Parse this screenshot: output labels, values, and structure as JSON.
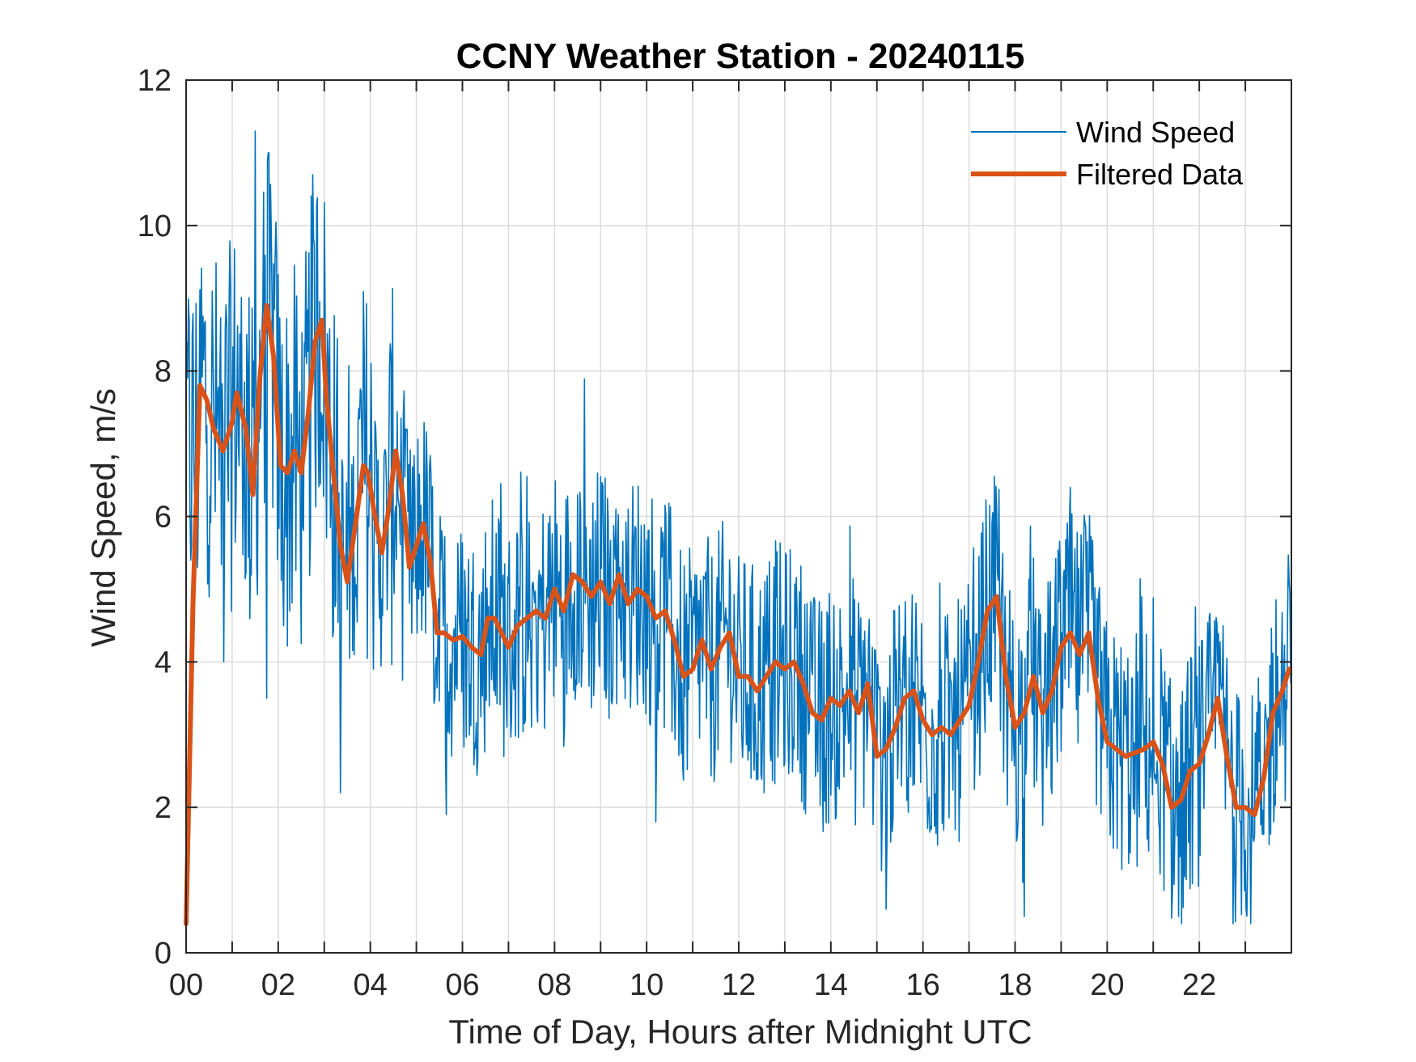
{
  "chart_data": {
    "type": "line",
    "title": "CCNY Weather Station - 20240115",
    "xlabel": "Time of Day, Hours after Midnight UTC",
    "ylabel": "Wind Speed, m/s",
    "xlim": [
      0,
      24
    ],
    "ylim": [
      0,
      12
    ],
    "grid": true,
    "x_ticks": [
      0,
      2,
      4,
      6,
      8,
      10,
      12,
      14,
      16,
      18,
      20,
      22
    ],
    "x_tick_labels": [
      "00",
      "02",
      "04",
      "06",
      "08",
      "10",
      "12",
      "14",
      "16",
      "18",
      "20",
      "22"
    ],
    "x_minor_grid_step": 1,
    "y_ticks": [
      0,
      2,
      4,
      6,
      8,
      10,
      12
    ],
    "y_tick_labels": [
      "0",
      "2",
      "4",
      "6",
      "8",
      "10",
      "12"
    ],
    "legend": {
      "position": "top-right",
      "entries": [
        "Wind Speed",
        "Filtered Data"
      ]
    },
    "colors": {
      "wind_speed": "#0072BD",
      "filtered": "#D95319",
      "axis": "#262626",
      "grid": "#dcdcdc"
    },
    "series": [
      {
        "name": "Filtered Data",
        "x": [
          0.0,
          0.15,
          0.3,
          0.45,
          0.6,
          0.8,
          1.0,
          1.1,
          1.3,
          1.45,
          1.6,
          1.75,
          1.9,
          2.05,
          2.2,
          2.35,
          2.5,
          2.65,
          2.8,
          2.95,
          3.05,
          3.2,
          3.35,
          3.5,
          3.7,
          3.85,
          3.95,
          4.1,
          4.25,
          4.4,
          4.55,
          4.7,
          4.85,
          5.0,
          5.15,
          5.3,
          5.45,
          5.6,
          5.8,
          6.0,
          6.2,
          6.4,
          6.55,
          6.7,
          6.85,
          7.0,
          7.2,
          7.4,
          7.6,
          7.8,
          8.0,
          8.2,
          8.4,
          8.6,
          8.8,
          9.0,
          9.2,
          9.4,
          9.6,
          9.8,
          10.0,
          10.2,
          10.4,
          10.6,
          10.8,
          11.0,
          11.2,
          11.4,
          11.6,
          11.8,
          12.0,
          12.2,
          12.4,
          12.6,
          12.8,
          13.0,
          13.2,
          13.4,
          13.6,
          13.8,
          14.0,
          14.2,
          14.4,
          14.6,
          14.8,
          15.0,
          15.2,
          15.4,
          15.6,
          15.8,
          16.0,
          16.2,
          16.4,
          16.6,
          16.8,
          17.0,
          17.2,
          17.4,
          17.6,
          17.8,
          18.0,
          18.2,
          18.4,
          18.6,
          18.8,
          19.0,
          19.2,
          19.4,
          19.6,
          19.8,
          20.0,
          20.2,
          20.4,
          20.6,
          20.8,
          21.0,
          21.2,
          21.4,
          21.6,
          21.8,
          22.0,
          22.2,
          22.4,
          22.6,
          22.8,
          23.0,
          23.2,
          23.4,
          23.6,
          23.8,
          23.95
        ],
        "y": [
          0.4,
          4.8,
          7.8,
          7.6,
          7.2,
          6.9,
          7.3,
          7.7,
          7.2,
          6.3,
          7.9,
          8.9,
          8.2,
          6.7,
          6.6,
          6.9,
          6.6,
          7.4,
          8.4,
          8.7,
          7.6,
          6.6,
          5.6,
          5.1,
          6.0,
          6.7,
          6.6,
          6.0,
          5.5,
          6.1,
          6.9,
          6.3,
          5.3,
          5.6,
          5.9,
          5.4,
          4.4,
          4.4,
          4.3,
          4.35,
          4.2,
          4.1,
          4.6,
          4.6,
          4.4,
          4.2,
          4.5,
          4.6,
          4.7,
          4.6,
          5.0,
          4.7,
          5.2,
          5.1,
          4.9,
          5.1,
          4.8,
          5.2,
          4.8,
          5.0,
          4.9,
          4.6,
          4.7,
          4.3,
          3.8,
          3.9,
          4.3,
          3.9,
          4.2,
          4.4,
          3.8,
          3.8,
          3.6,
          3.8,
          4.0,
          3.9,
          4.0,
          3.7,
          3.3,
          3.2,
          3.5,
          3.4,
          3.6,
          3.3,
          3.7,
          2.7,
          2.8,
          3.1,
          3.5,
          3.6,
          3.2,
          3.0,
          3.1,
          3.0,
          3.2,
          3.4,
          4.0,
          4.7,
          4.9,
          3.8,
          3.1,
          3.3,
          3.8,
          3.3,
          3.6,
          4.2,
          4.4,
          4.1,
          4.4,
          3.5,
          2.9,
          2.8,
          2.7,
          2.75,
          2.8,
          2.9,
          2.6,
          2.0,
          2.1,
          2.5,
          2.6,
          3.0,
          3.5,
          2.7,
          2.0,
          2.0,
          1.9,
          2.4,
          3.3,
          3.6,
          3.9
        ]
      },
      {
        "name": "Wind Speed",
        "sampling_minutes": 1,
        "note": "high-frequency raw series scattered around the filtered curve; envelope approx. filtered ± 2.5 m/s; peak ~11.3 at 01:30, dips to ~0.5 near 21:30",
        "notable_points": [
          {
            "x": 1.5,
            "y": 11.3
          },
          {
            "x": 2.75,
            "y": 10.7
          },
          {
            "x": 1.75,
            "y": 3.5
          },
          {
            "x": 3.35,
            "y": 2.2
          },
          {
            "x": 5.65,
            "y": 1.9
          },
          {
            "x": 10.2,
            "y": 1.8
          },
          {
            "x": 15.2,
            "y": 0.6
          },
          {
            "x": 18.2,
            "y": 0.5
          },
          {
            "x": 21.55,
            "y": 0.5
          },
          {
            "x": 19.2,
            "y": 6.4
          },
          {
            "x": 17.6,
            "y": 6.1
          },
          {
            "x": 23.95,
            "y": 5.1
          }
        ]
      }
    ]
  }
}
